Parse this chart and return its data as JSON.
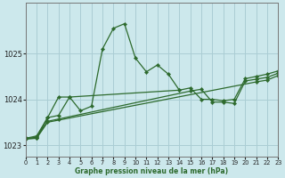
{
  "title": "Graphe pression niveau de la mer (hPa)",
  "bg_color": "#cce8ec",
  "grid_color": "#aacdd4",
  "line_color": "#2d6a2d",
  "xlim": [
    0,
    23
  ],
  "ylim": [
    1022.75,
    1026.1
  ],
  "yticks": [
    1023,
    1024,
    1025
  ],
  "xticks": [
    0,
    1,
    2,
    3,
    4,
    5,
    6,
    7,
    8,
    9,
    10,
    11,
    12,
    13,
    14,
    15,
    16,
    17,
    18,
    19,
    20,
    21,
    22,
    23
  ],
  "line_main_x": [
    0,
    1,
    2,
    3,
    4,
    5,
    6,
    7,
    8,
    9,
    10,
    11,
    12,
    13,
    14
  ],
  "line_main_y": [
    1023.15,
    1023.15,
    1023.6,
    1024.05,
    1024.05,
    1023.75,
    1023.85,
    1025.1,
    1025.55,
    1025.65,
    1024.9,
    1024.6,
    1024.75,
    1024.55,
    1024.2
  ],
  "line_a_x": [
    0,
    1,
    2,
    3,
    4,
    14,
    15,
    16,
    17,
    18,
    19,
    20,
    21,
    22,
    23
  ],
  "line_a_y": [
    1023.15,
    1023.2,
    1023.6,
    1023.65,
    1024.05,
    1024.2,
    1024.25,
    1024.0,
    1024.0,
    1023.97,
    1024.0,
    1024.45,
    1024.5,
    1024.55,
    1024.62
  ],
  "line_b_x": [
    0,
    1,
    2,
    3,
    15,
    16,
    17,
    18,
    19,
    20,
    21,
    22,
    23
  ],
  "line_b_y": [
    1023.15,
    1023.17,
    1023.52,
    1023.57,
    1024.18,
    1024.22,
    1023.94,
    1023.94,
    1023.91,
    1024.4,
    1024.44,
    1024.48,
    1024.57
  ],
  "line_c_x": [
    0,
    1,
    2,
    21,
    22,
    23
  ],
  "line_c_y": [
    1023.13,
    1023.15,
    1023.5,
    1024.38,
    1024.42,
    1024.52
  ]
}
